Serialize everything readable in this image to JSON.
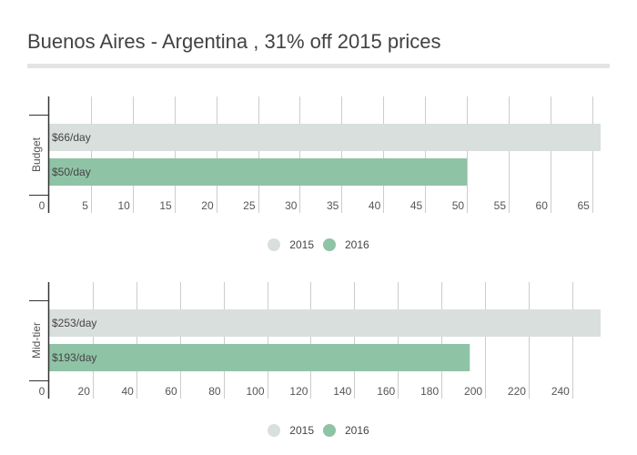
{
  "title": "Buenos Aires - Argentina , 31% off 2015 prices",
  "legend": [
    {
      "name": "2015",
      "color": "#d9dfdc"
    },
    {
      "name": "2016",
      "color": "#8fc3a6"
    }
  ],
  "chart_data": [
    {
      "type": "bar",
      "orientation": "horizontal",
      "category": "Budget",
      "xlim": [
        0,
        66
      ],
      "ticks": [
        0,
        5,
        10,
        15,
        20,
        25,
        30,
        35,
        40,
        45,
        50,
        55,
        60,
        65
      ],
      "grid": true,
      "legend_position": "bottom",
      "series": [
        {
          "name": "2015",
          "value": 66,
          "label": "$66/day",
          "color": "#d9dfdc"
        },
        {
          "name": "2016",
          "value": 50,
          "label": "$50/day",
          "color": "#8fc3a6"
        }
      ]
    },
    {
      "type": "bar",
      "orientation": "horizontal",
      "category": "Mid-tier",
      "xlim": [
        0,
        253
      ],
      "ticks": [
        0,
        20,
        40,
        60,
        80,
        100,
        120,
        140,
        160,
        180,
        200,
        220,
        240
      ],
      "grid": true,
      "legend_position": "bottom",
      "series": [
        {
          "name": "2015",
          "value": 253,
          "label": "$253/day",
          "color": "#d9dfdc"
        },
        {
          "name": "2016",
          "value": 193,
          "label": "$193/day",
          "color": "#8fc3a6"
        }
      ]
    }
  ]
}
